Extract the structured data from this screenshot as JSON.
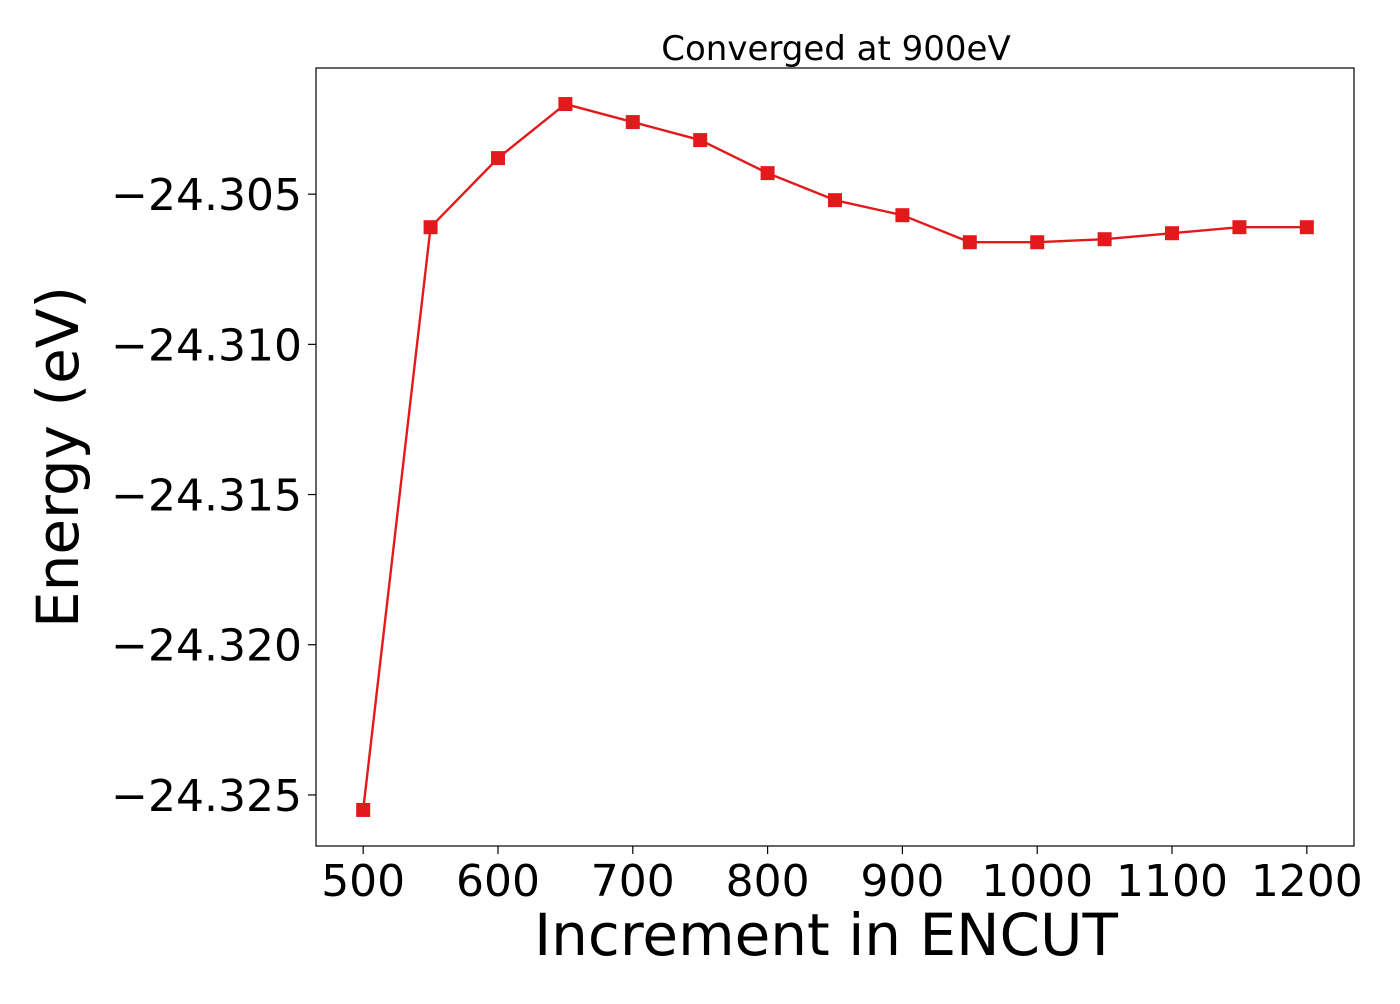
{
  "chart_data": {
    "type": "line",
    "title": "Converged at 900eV",
    "xlabel": "Increment in ENCUT",
    "ylabel": "Energy (eV)",
    "x": [
      500,
      550,
      600,
      650,
      700,
      750,
      800,
      850,
      900,
      950,
      1000,
      1050,
      1100,
      1150,
      1200
    ],
    "series": [
      {
        "values": [
          -24.3255,
          -24.3061,
          -24.3038,
          -24.302,
          -24.3026,
          -24.3032,
          -24.3043,
          -24.3052,
          -24.3057,
          -24.3066,
          -24.3066,
          -24.3065,
          -24.3063,
          -24.3061,
          -24.3061
        ]
      }
    ],
    "xlim": [
      465,
      1235
    ],
    "ylim": [
      -24.3267,
      -24.3008
    ],
    "xticks": [
      500,
      600,
      700,
      800,
      900,
      1000,
      1100,
      1200
    ],
    "xtick_labels": [
      "500",
      "600",
      "700",
      "800",
      "900",
      "1000",
      "1100",
      "1200"
    ],
    "yticks": [
      -24.305,
      -24.31,
      -24.315,
      -24.32,
      -24.325
    ],
    "ytick_labels": [
      "−24.305",
      "−24.310",
      "−24.315",
      "−24.320",
      "−24.325"
    ],
    "line_color": "#e31a1c",
    "marker": "square",
    "grid": false,
    "legend": "none"
  }
}
